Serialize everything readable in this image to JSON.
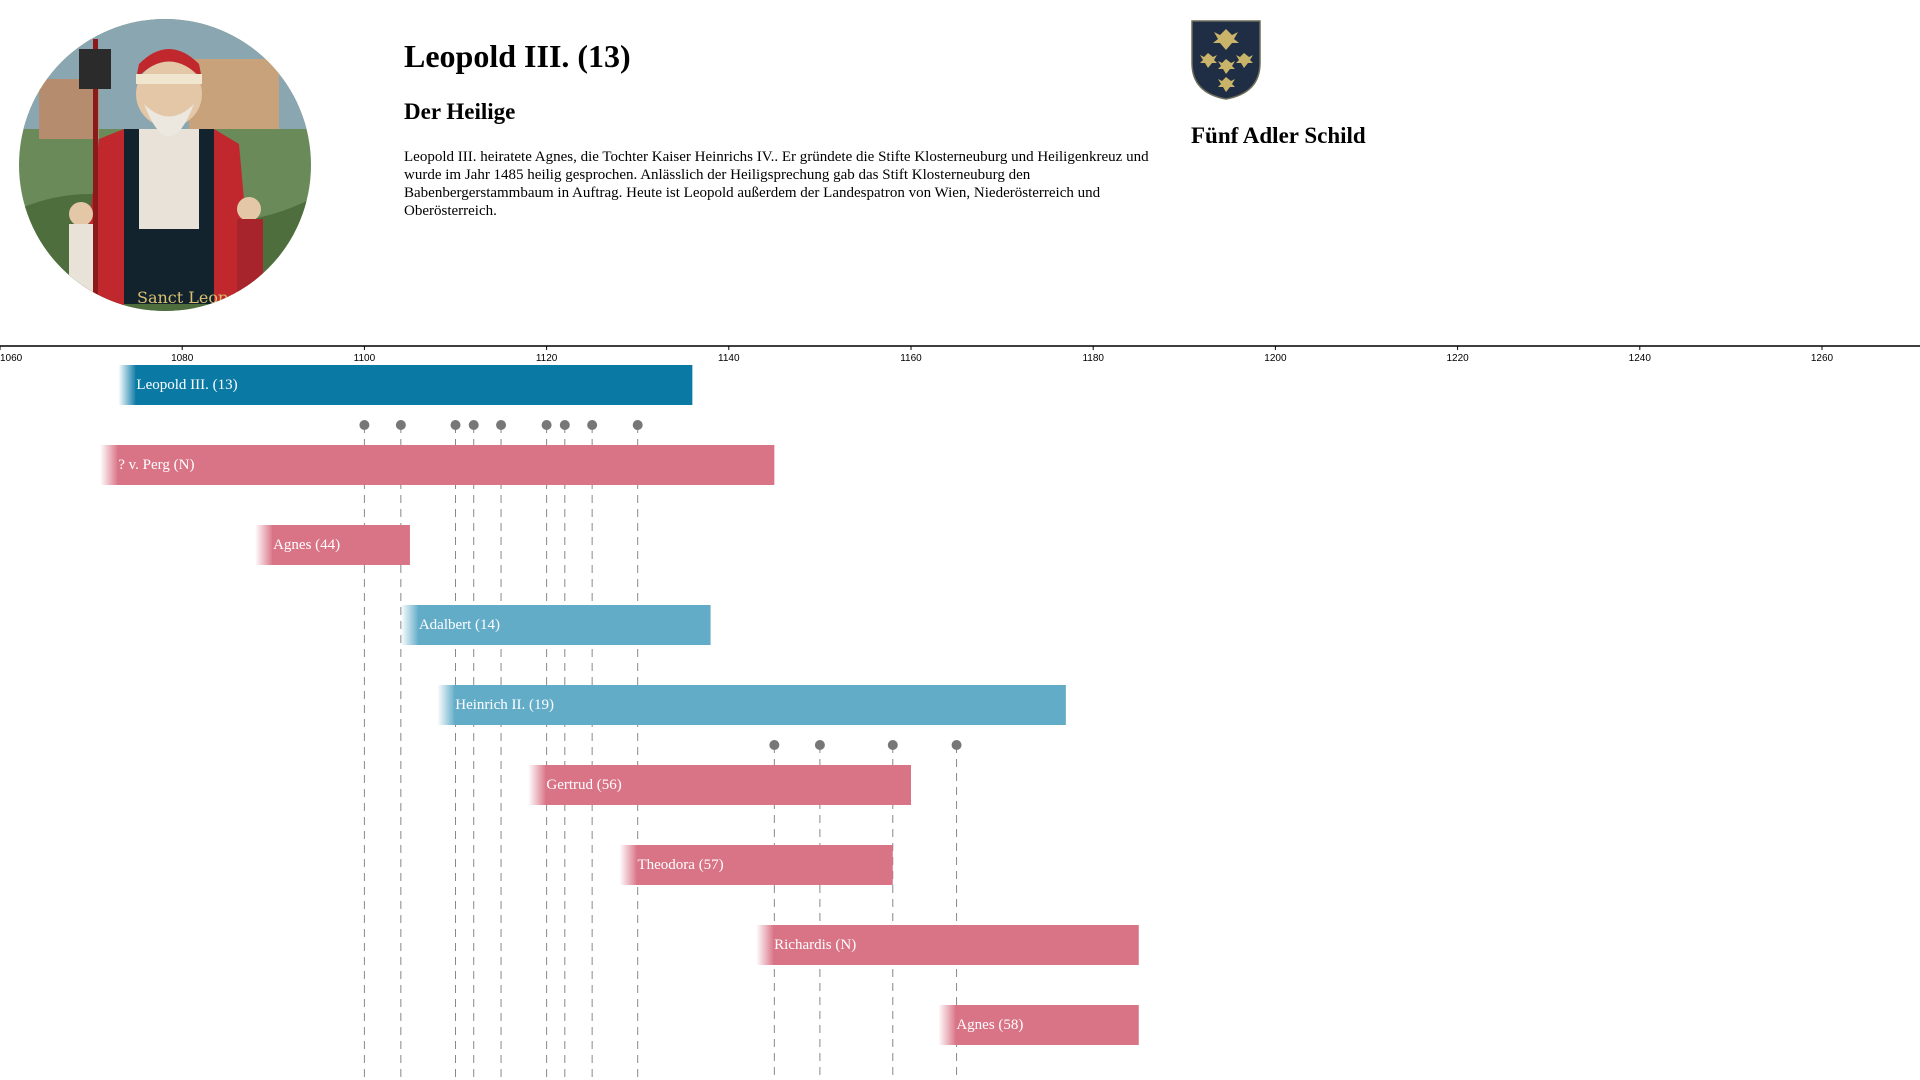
{
  "person": {
    "title": "Leopold III. (13)",
    "subtitle": "Der Heilige",
    "bio": "Leopold III. heiratete Agnes, die Tochter Kaiser Heinrichs IV.. Er gründete die Stifte Klosterneuburg und Heiligenkreuz und wurde im Jahr 1485 heilig gesprochen. Anlässlich der Heiligsprechung gab das Stift Klosterneuburg den Babenbergerstammbaum in Auftrag. Heute ist Leopold außerdem der Landespatron von Wien, Niederösterreich und Oberösterreich.",
    "portrait_caption": "Sanct Leopold"
  },
  "crest": {
    "title": "Fünf Adler Schild"
  },
  "colors": {
    "male": "#0a7aa5",
    "male_light": "#62acc8",
    "female": "#d97386",
    "dot": "#777777",
    "axis": "#000000"
  },
  "timeline": {
    "axis_ticks": [
      "1060",
      "1080",
      "1100",
      "1120",
      "1140",
      "1160",
      "1180",
      "1200",
      "1220",
      "1240",
      "1260"
    ],
    "people": [
      {
        "name": "Leopold III. (13)",
        "gender": "male",
        "start": 1073,
        "end": 1136
      },
      {
        "name": "? v. Perg (N)",
        "gender": "female",
        "start": 1071,
        "end": 1145
      },
      {
        "name": "Agnes (44)",
        "gender": "female",
        "start": 1088,
        "end": 1105
      },
      {
        "name": "Adalbert (14)",
        "gender": "male_light",
        "start": 1104,
        "end": 1138
      },
      {
        "name": "Heinrich II. (19)",
        "gender": "male_light",
        "start": 1108,
        "end": 1177
      },
      {
        "name": "Gertrud (56)",
        "gender": "female",
        "start": 1118,
        "end": 1160
      },
      {
        "name": "Theodora (57)",
        "gender": "female",
        "start": 1128,
        "end": 1158
      },
      {
        "name": "Richardis (N)",
        "gender": "female",
        "start": 1143,
        "end": 1185
      },
      {
        "name": "Agnes (58)",
        "gender": "female",
        "start": 1163,
        "end": 1185
      }
    ],
    "marriages_1": [
      1100,
      1104
    ],
    "marriages_2": [
      1145,
      1150
    ],
    "births_1": [
      1100,
      1104,
      1110,
      1112,
      1115,
      1120,
      1122,
      1125,
      1130
    ],
    "births_2": [
      1145,
      1150,
      1158,
      1165
    ]
  }
}
